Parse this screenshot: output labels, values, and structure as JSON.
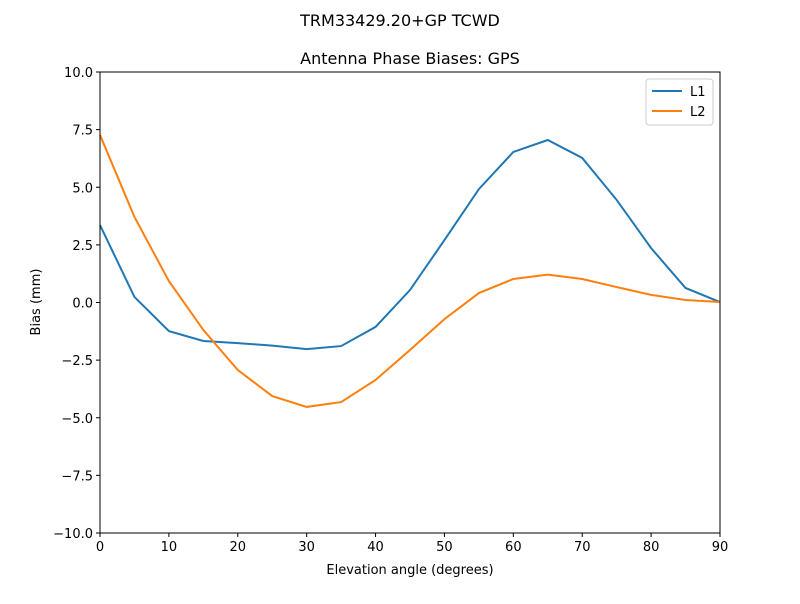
{
  "chart_data": {
    "type": "line",
    "suptitle": "TRM33429.20+GP  TCWD",
    "title": "Antenna Phase Biases: GPS",
    "xlabel": "Elevation angle (degrees)",
    "ylabel": "Bias (mm)",
    "xlim": [
      0,
      90
    ],
    "ylim": [
      -10,
      10
    ],
    "xticks": [
      0,
      10,
      20,
      30,
      40,
      50,
      60,
      70,
      80,
      90
    ],
    "xtick_labels": [
      "0",
      "10",
      "20",
      "30",
      "40",
      "50",
      "60",
      "70",
      "80",
      "90"
    ],
    "yticks": [
      -10,
      -7.5,
      -5,
      -2.5,
      0,
      2.5,
      5,
      7.5,
      10
    ],
    "ytick_labels": [
      "−10.0",
      "−7.5",
      "−5.0",
      "−2.5",
      "0.0",
      "2.5",
      "5.0",
      "7.5",
      "10.0"
    ],
    "grid": false,
    "legend_position": "top-right",
    "x": [
      0,
      5,
      10,
      15,
      20,
      25,
      30,
      35,
      40,
      45,
      50,
      55,
      60,
      65,
      70,
      75,
      80,
      85,
      90
    ],
    "series": [
      {
        "name": "L1",
        "color": "#1f77b4",
        "values": [
          3.36,
          0.24,
          -1.24,
          -1.67,
          -1.76,
          -1.87,
          -2.02,
          -1.89,
          -1.06,
          0.54,
          2.71,
          4.92,
          6.53,
          7.05,
          6.27,
          4.45,
          2.36,
          0.63,
          0.02
        ]
      },
      {
        "name": "L2",
        "color": "#ff7f0e",
        "values": [
          7.27,
          3.71,
          0.93,
          -1.19,
          -2.93,
          -4.06,
          -4.53,
          -4.32,
          -3.36,
          -2.06,
          -0.72,
          0.41,
          1.02,
          1.21,
          1.02,
          0.67,
          0.33,
          0.11,
          0.02
        ]
      }
    ]
  }
}
